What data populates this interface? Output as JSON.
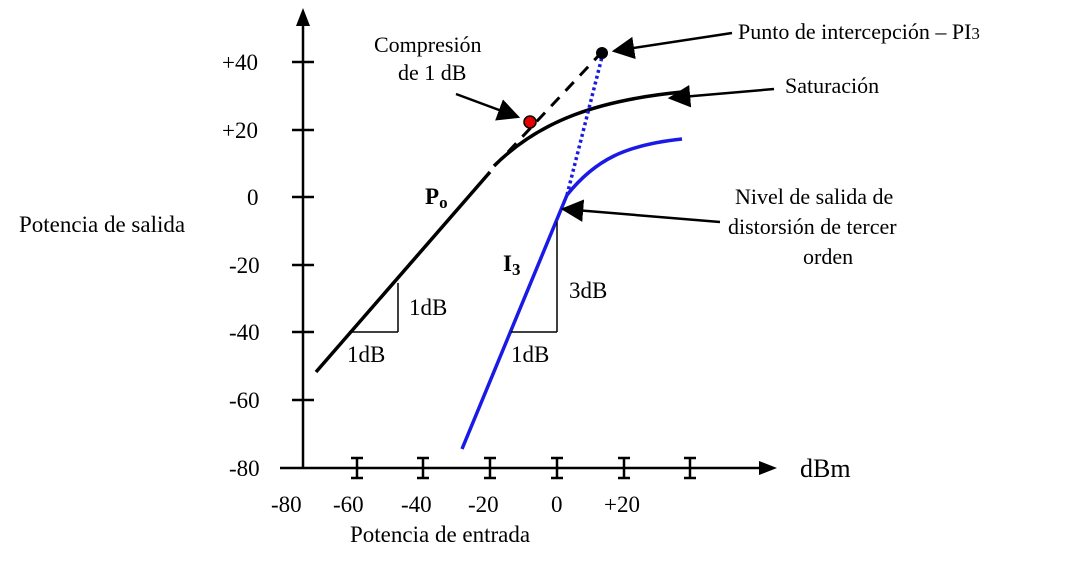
{
  "axes": {
    "y_label": "Potencia de salida",
    "x_label": "Potencia de entrada",
    "x_unit": "dBm",
    "y_ticks": [
      "+40",
      "+20",
      "0",
      "-20",
      "-40",
      "-60",
      "-80"
    ],
    "x_ticks": [
      "-80",
      "-60",
      "-40",
      "-20",
      "0",
      "+20"
    ]
  },
  "curves": {
    "fundamental_label": "P",
    "fundamental_sub": "o",
    "third_order_label": "I",
    "third_order_sub": "3"
  },
  "annotations": {
    "compression_line1": "Compresión",
    "compression_line2": "de 1 dB",
    "intercept_main": "Punto de intercepción – PI",
    "intercept_sub": "3",
    "saturation": "Saturación",
    "distortion_line1": "Nivel de salida de",
    "distortion_line2": "distorsión de tercer",
    "distortion_line3": "orden",
    "slope_po_vertical": "1dB",
    "slope_po_horizontal": "1dB",
    "slope_i3_vertical": "3dB",
    "slope_i3_horizontal": "1dB"
  },
  "colors": {
    "fundamental": "#000000",
    "third_order": "#1a1ae6",
    "marker_compression": "#e60000",
    "marker_intercept": "#000000"
  }
}
